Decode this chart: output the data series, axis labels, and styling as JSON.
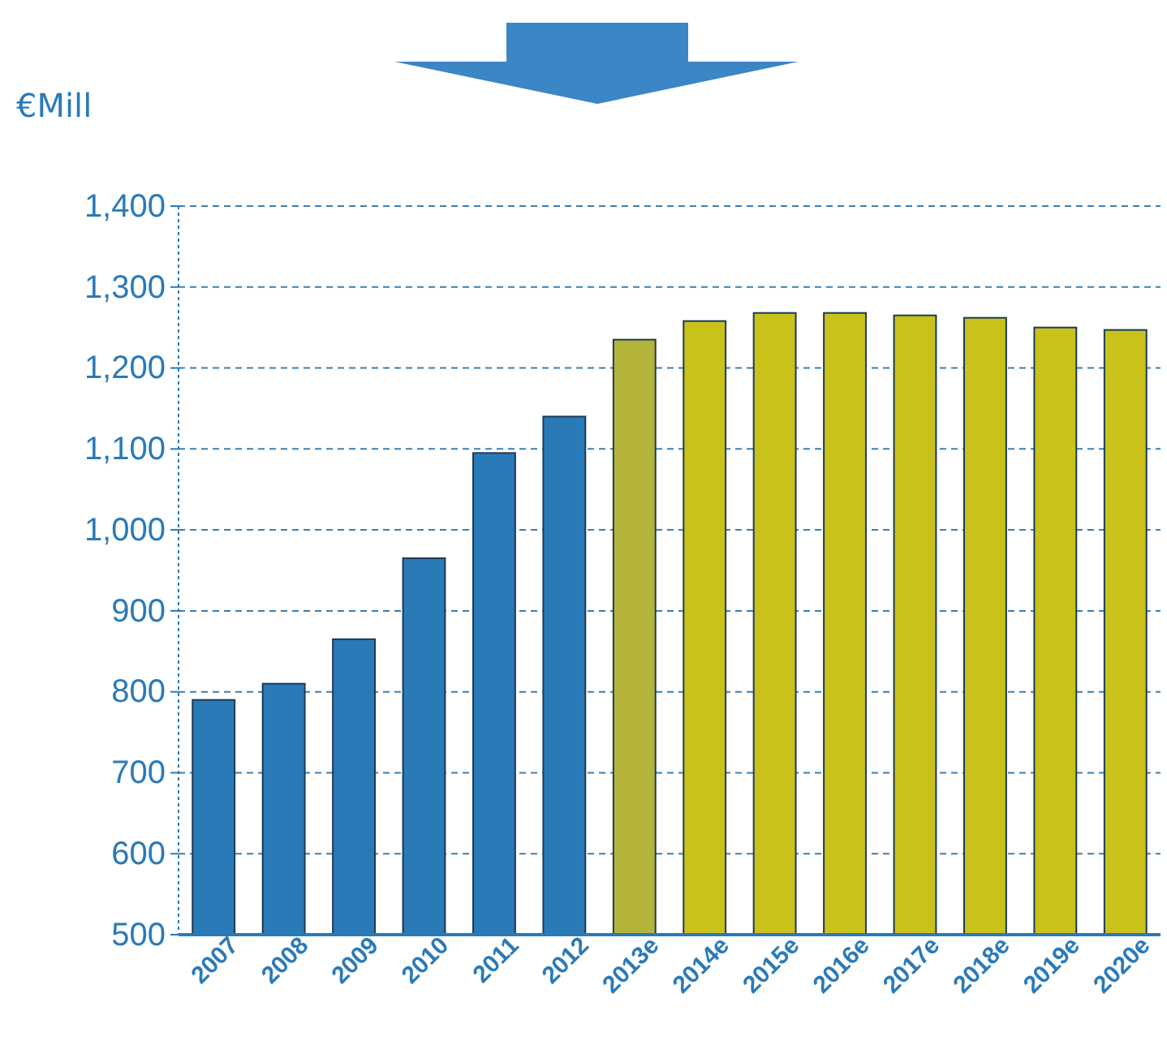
{
  "chart_data": {
    "type": "bar",
    "ylabel": "€Mill",
    "categories": [
      "2007",
      "2008",
      "2009",
      "2010",
      "2011",
      "2012",
      "2013e",
      "2014e",
      "2015e",
      "2016e",
      "2017e",
      "2018e",
      "2019e",
      "2020e"
    ],
    "values": [
      790,
      810,
      865,
      965,
      1095,
      1140,
      1235,
      1258,
      1268,
      1268,
      1265,
      1262,
      1250,
      1247
    ],
    "colors": [
      "#2a7ab8",
      "#2a7ab8",
      "#2a7ab8",
      "#2a7ab8",
      "#2a7ab8",
      "#2a7ab8",
      "#b5b43a",
      "#c8c21a",
      "#c8c21a",
      "#c8c21a",
      "#c8c21a",
      "#c8c21a",
      "#c8c21a",
      "#c8c21a"
    ],
    "ylim": [
      500,
      1400
    ],
    "yticks": [
      500,
      600,
      700,
      800,
      900,
      {
        "value": 1000,
        "label": "1,000"
      },
      {
        "value": 1100,
        "label": "1,100"
      },
      {
        "value": 1200,
        "label": "1,200"
      },
      {
        "value": 1300,
        "label": "1,300"
      },
      {
        "value": 1400,
        "label": "1,400"
      }
    ],
    "grid": "y"
  }
}
